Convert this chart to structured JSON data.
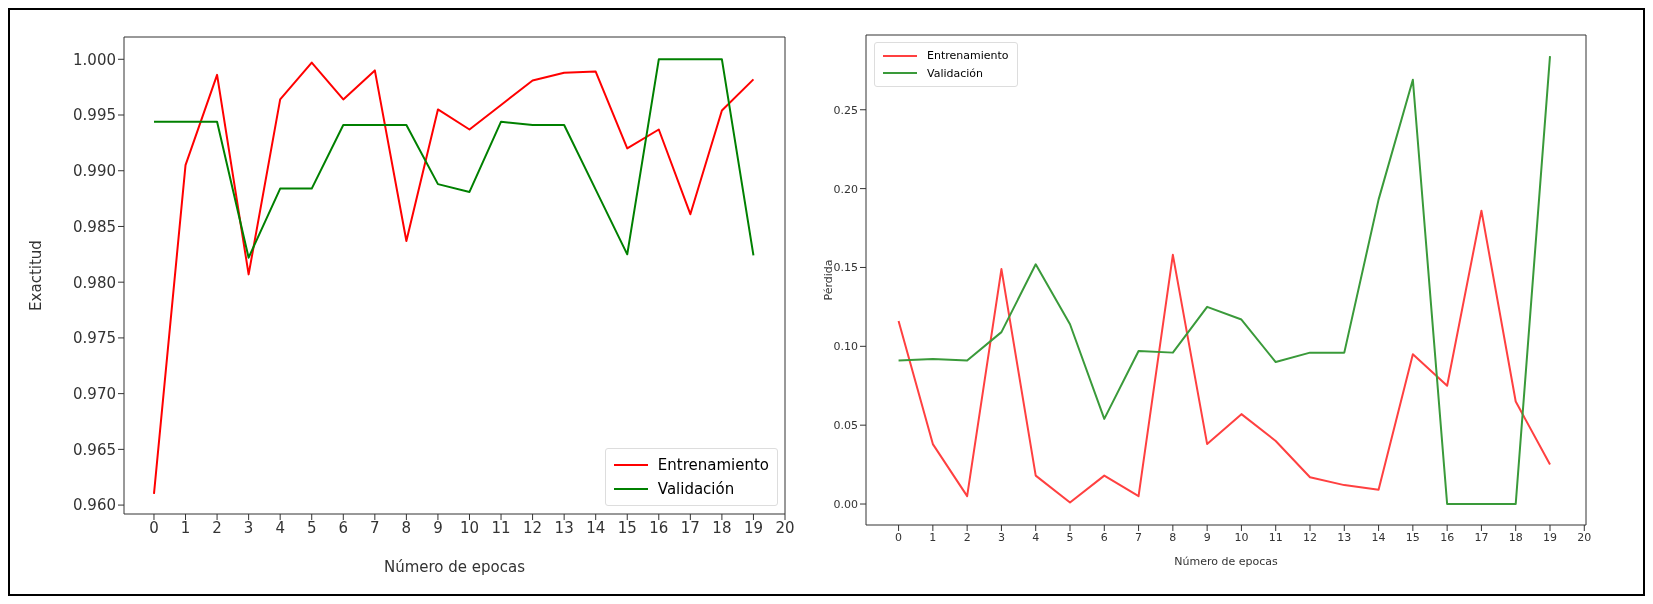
{
  "chart_data": [
    {
      "type": "line",
      "xlabel": "Número de epocas",
      "ylabel": "Exactitud",
      "x": [
        0,
        1,
        2,
        3,
        4,
        5,
        6,
        7,
        8,
        9,
        10,
        11,
        12,
        13,
        14,
        15,
        16,
        17,
        18,
        19
      ],
      "series": [
        {
          "name": "Entrenamiento",
          "color": "#ff0000",
          "values": [
            0.961,
            0.9905,
            0.9986,
            0.9807,
            0.9964,
            0.9997,
            0.9964,
            0.999,
            0.9837,
            0.9955,
            0.9937,
            0.9959,
            0.9981,
            0.9988,
            0.9989,
            0.992,
            0.9937,
            0.9861,
            0.9954,
            0.9982
          ]
        },
        {
          "name": "Validación",
          "color": "#008000",
          "values": [
            0.9944,
            0.9944,
            0.9944,
            0.9822,
            0.9884,
            0.9884,
            0.9941,
            0.9941,
            0.9941,
            0.9888,
            0.9881,
            0.9944,
            0.9941,
            0.9941,
            0.9883,
            0.9825,
            1.0,
            1.0,
            1.0,
            0.9824
          ]
        }
      ],
      "xlim": [
        -0.95,
        20
      ],
      "ylim": [
        0.9592,
        1.002
      ],
      "xticks": [
        0,
        1,
        2,
        3,
        4,
        5,
        6,
        7,
        8,
        9,
        10,
        11,
        12,
        13,
        14,
        15,
        16,
        17,
        18,
        19,
        20
      ],
      "yticks": [
        {
          "value": 0.96,
          "label": "0.960"
        },
        {
          "value": 0.965,
          "label": "0.965"
        },
        {
          "value": 0.97,
          "label": "0.970"
        },
        {
          "value": 0.975,
          "label": "0.975"
        },
        {
          "value": 0.98,
          "label": "0.980"
        },
        {
          "value": 0.985,
          "label": "0.985"
        },
        {
          "value": 0.99,
          "label": "0.990"
        },
        {
          "value": 0.995,
          "label": "0.995"
        },
        {
          "value": 1.0,
          "label": "1.000"
        }
      ],
      "grid": false,
      "legend": "bottom right",
      "marker": "none",
      "line_style": "solid"
    },
    {
      "type": "line",
      "xlabel": "Número de epocas",
      "ylabel": "Pérdida",
      "x": [
        0,
        1,
        2,
        3,
        4,
        5,
        6,
        7,
        8,
        9,
        10,
        11,
        12,
        13,
        14,
        15,
        16,
        17,
        18,
        19
      ],
      "series": [
        {
          "name": "Entrenamiento",
          "color": "#ff4040",
          "values": [
            0.116,
            0.038,
            0.005,
            0.149,
            0.018,
            0.001,
            0.018,
            0.005,
            0.158,
            0.038,
            0.057,
            0.04,
            0.017,
            0.012,
            0.009,
            0.095,
            0.075,
            0.186,
            0.065,
            0.025
          ]
        },
        {
          "name": "Validación",
          "color": "#3a9a3a",
          "values": [
            0.091,
            0.092,
            0.091,
            0.109,
            0.152,
            0.114,
            0.054,
            0.097,
            0.096,
            0.125,
            0.117,
            0.09,
            0.096,
            0.096,
            0.193,
            0.269,
            0.0,
            0.0,
            0.0,
            0.284
          ]
        }
      ],
      "xlim": [
        -0.95,
        20.05
      ],
      "ylim": [
        -0.0133,
        0.2974
      ],
      "xticks": [
        0,
        1,
        2,
        3,
        4,
        5,
        6,
        7,
        8,
        9,
        10,
        11,
        12,
        13,
        14,
        15,
        16,
        17,
        18,
        19,
        20
      ],
      "yticks": [
        {
          "value": 0,
          "label": "0.00"
        },
        {
          "value": 0.05,
          "label": "0.05"
        },
        {
          "value": 0.1,
          "label": "0.10"
        },
        {
          "value": 0.15,
          "label": "0.15"
        },
        {
          "value": 0.2,
          "label": "0.20"
        },
        {
          "value": 0.25,
          "label": "0.25"
        }
      ],
      "grid": false,
      "legend": "top left",
      "marker": "none",
      "line_style": "solid"
    }
  ]
}
